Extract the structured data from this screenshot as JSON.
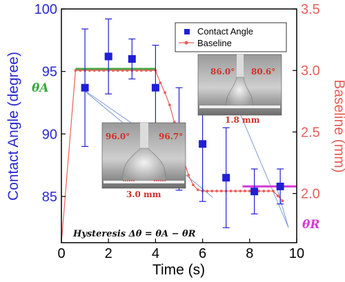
{
  "chart_data": {
    "type": "scatter",
    "xlabel": "Time (s)",
    "ylabel_left": "Contact Angle (degree)",
    "ylabel_right": "Baseline (mm)",
    "xlim": [
      0,
      10
    ],
    "ylim_left": [
      81.3,
      100
    ],
    "ylim_right": [
      1.6,
      3.5
    ],
    "x_ticks": [
      "0",
      "2",
      "4",
      "6",
      "8",
      "10"
    ],
    "y_left_ticks": [
      "85",
      "90",
      "95",
      "100"
    ],
    "y_right_ticks": [
      "2.0",
      "2.5",
      "3.0",
      "3.5"
    ],
    "legend_position": "top-right",
    "colors": {
      "contact_angle": "#1f1fd6",
      "baseline": "#e8605a",
      "theta_a": "#3aa83a",
      "theta_r": "#d43bd4"
    },
    "series": [
      {
        "name": "Contact Angle",
        "axis": "left",
        "marker": "square",
        "points": [
          {
            "x": 1.0,
            "y": 93.7,
            "yerr_low": 89.0,
            "yerr_high": 98.4
          },
          {
            "x": 2.0,
            "y": 96.2,
            "yerr_low": 93.2,
            "yerr_high": 99.2
          },
          {
            "x": 3.0,
            "y": 96.0,
            "yerr_low": 94.4,
            "yerr_high": 97.6
          },
          {
            "x": 4.0,
            "y": 93.7,
            "yerr_low": 90.3,
            "yerr_high": 97.1
          },
          {
            "x": 5.0,
            "y": 89.6,
            "yerr_low": 85.5,
            "yerr_high": 93.7
          },
          {
            "x": 6.0,
            "y": 89.2,
            "yerr_low": 84.6,
            "yerr_high": 93.8
          },
          {
            "x": 7.0,
            "y": 86.5,
            "yerr_low": 82.5,
            "yerr_high": 90.5
          },
          {
            "x": 8.2,
            "y": 85.4,
            "yerr_low": 83.6,
            "yerr_high": 87.2
          },
          {
            "x": 9.3,
            "y": 85.8,
            "yerr_low": 84.4,
            "yerr_high": 87.2
          }
        ]
      },
      {
        "name": "Baseline",
        "axis": "right",
        "marker": "circle-line",
        "points": [
          {
            "x": 0.0,
            "y": 1.6
          },
          {
            "x": 0.6,
            "y": 3.0
          },
          {
            "x": 0.8,
            "y": 3.0
          },
          {
            "x": 1.0,
            "y": 3.0
          },
          {
            "x": 1.2,
            "y": 3.0
          },
          {
            "x": 1.4,
            "y": 3.0
          },
          {
            "x": 1.6,
            "y": 3.0
          },
          {
            "x": 1.8,
            "y": 3.0
          },
          {
            "x": 2.0,
            "y": 3.0
          },
          {
            "x": 2.2,
            "y": 3.0
          },
          {
            "x": 2.4,
            "y": 3.0
          },
          {
            "x": 2.6,
            "y": 3.0
          },
          {
            "x": 2.8,
            "y": 3.0
          },
          {
            "x": 3.0,
            "y": 3.0
          },
          {
            "x": 3.2,
            "y": 3.0
          },
          {
            "x": 3.4,
            "y": 3.0
          },
          {
            "x": 3.6,
            "y": 3.0
          },
          {
            "x": 3.8,
            "y": 3.0
          },
          {
            "x": 4.0,
            "y": 3.0
          },
          {
            "x": 4.2,
            "y": 2.9
          },
          {
            "x": 4.4,
            "y": 2.82
          },
          {
            "x": 4.6,
            "y": 2.72
          },
          {
            "x": 4.8,
            "y": 2.58
          },
          {
            "x": 5.0,
            "y": 2.42
          },
          {
            "x": 5.2,
            "y": 2.27
          },
          {
            "x": 5.4,
            "y": 2.15
          },
          {
            "x": 5.6,
            "y": 2.07
          },
          {
            "x": 5.8,
            "y": 2.03
          },
          {
            "x": 6.0,
            "y": 2.02
          },
          {
            "x": 6.2,
            "y": 2.02
          },
          {
            "x": 6.4,
            "y": 2.02
          },
          {
            "x": 6.6,
            "y": 2.02
          },
          {
            "x": 6.8,
            "y": 2.02
          },
          {
            "x": 7.0,
            "y": 2.02
          },
          {
            "x": 7.2,
            "y": 2.02
          },
          {
            "x": 7.4,
            "y": 2.02
          },
          {
            "x": 7.6,
            "y": 2.02
          },
          {
            "x": 7.8,
            "y": 2.02
          },
          {
            "x": 8.0,
            "y": 2.02
          },
          {
            "x": 8.2,
            "y": 2.02
          },
          {
            "x": 8.4,
            "y": 2.02
          },
          {
            "x": 8.6,
            "y": 2.02
          },
          {
            "x": 8.8,
            "y": 2.02
          },
          {
            "x": 9.0,
            "y": 2.02
          },
          {
            "x": 9.2,
            "y": 1.98
          },
          {
            "x": 9.4,
            "y": 1.94
          }
        ]
      }
    ],
    "reference_lines": [
      {
        "label": "θA",
        "axis": "left",
        "y": 95.2,
        "x_start": 0.6,
        "x_end": 4.0
      },
      {
        "label": "θR",
        "axis": "left",
        "y": 85.8,
        "x_start": 7.7,
        "x_end": 10.0
      }
    ],
    "annotations": {
      "theta_a_label": "θA",
      "theta_r_label": "θR",
      "hysteresis": "Hysteresis Δθ = θA − θR"
    },
    "insets": [
      {
        "left_angle": "96.0°",
        "right_angle": "96.7°",
        "scale": "3.0 mm"
      },
      {
        "left_angle": "86.0°",
        "right_angle": "80.6°",
        "scale": "1.8 mm"
      }
    ]
  }
}
